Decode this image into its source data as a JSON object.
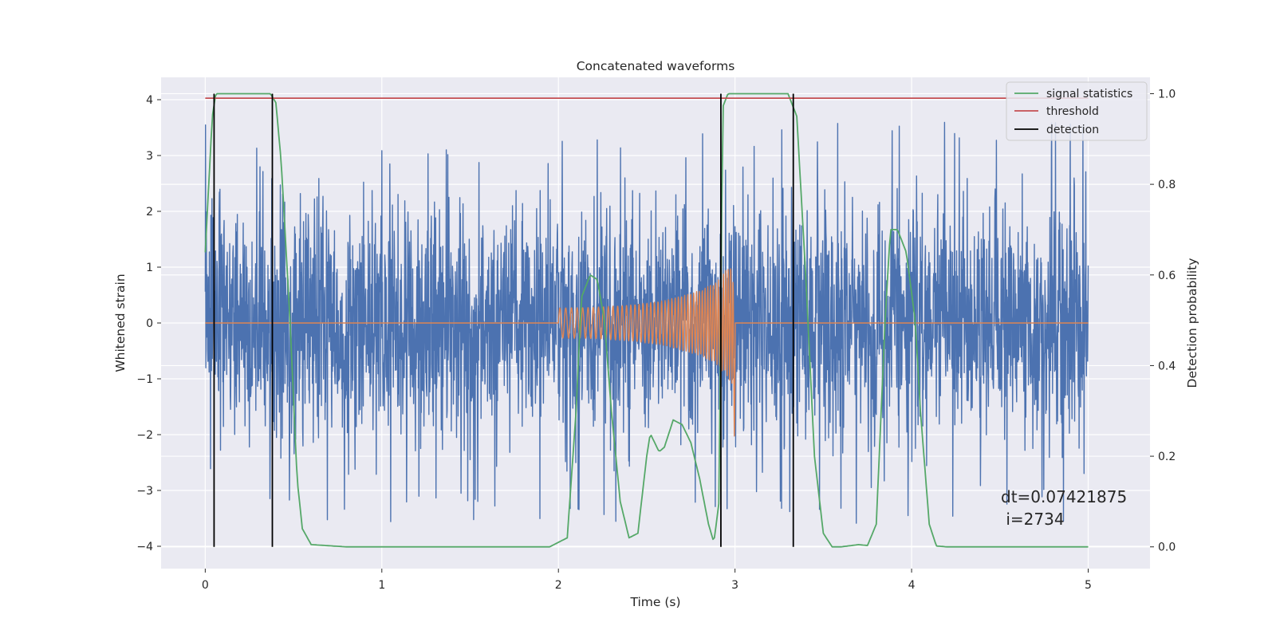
{
  "chart_data": {
    "type": "line",
    "title": "Concatenated waveforms",
    "xlabel": "Time (s)",
    "ylabel": "Whitened strain",
    "y2label": "Detection probability",
    "xlim": [
      -0.25,
      5.35
    ],
    "ylim": [
      -4.4,
      4.4
    ],
    "y2lim": [
      -0.048,
      1.036
    ],
    "xticks": [
      0,
      1,
      2,
      3,
      4,
      5
    ],
    "yticks": [
      -4,
      -3,
      -2,
      -1,
      0,
      1,
      2,
      3,
      4
    ],
    "y2ticks": [
      0.0,
      0.2,
      0.4,
      0.6,
      0.8,
      1.0
    ],
    "xtick_labels": [
      "0",
      "1",
      "2",
      "3",
      "4",
      "5"
    ],
    "ytick_labels": [
      "−4",
      "−3",
      "−2",
      "−1",
      "0",
      "1",
      "2",
      "3",
      "4"
    ],
    "y2tick_labels": [
      "0.0",
      "0.2",
      "0.4",
      "0.6",
      "0.8",
      "1.0"
    ],
    "grid": true,
    "legend_position": "top-right",
    "legend": [
      {
        "label": "signal statistics",
        "color": "#55a868"
      },
      {
        "label": "threshold",
        "color": "#c44e52"
      },
      {
        "label": "detection",
        "color": "#000000"
      }
    ],
    "series": [
      {
        "name": "",
        "axis": "left",
        "color": "#4c72b0",
        "kind": "noise",
        "x_range": [
          0,
          5
        ],
        "typical_range": [
          -2.6,
          2.8
        ]
      },
      {
        "name": "",
        "axis": "left",
        "color": "#dd8452",
        "kind": "chirp",
        "x": [
          0,
          2.0,
          2.0,
          2.2,
          2.4,
          2.6,
          2.8,
          2.9,
          2.95,
          3.0,
          3.0,
          5.0
        ],
        "envelope": [
          0,
          0,
          0.27,
          0.28,
          0.32,
          0.4,
          0.58,
          0.75,
          0.95,
          1.15,
          0,
          0
        ]
      },
      {
        "name": "signal statistics",
        "axis": "right",
        "color": "#55a868",
        "x": [
          0,
          0.02,
          0.04,
          0.06,
          0.1,
          0.3,
          0.37,
          0.4,
          0.43,
          0.48,
          0.52,
          0.55,
          0.6,
          0.8,
          1.0,
          1.5,
          1.95,
          2.05,
          2.1,
          2.13,
          2.18,
          2.22,
          2.26,
          2.3,
          2.35,
          2.4,
          2.45,
          2.5,
          2.52,
          2.57,
          2.6,
          2.65,
          2.7,
          2.75,
          2.8,
          2.85,
          2.88,
          2.91,
          2.93,
          2.96,
          3.05,
          3.3,
          3.35,
          3.4,
          3.45,
          3.5,
          3.55,
          3.6,
          3.7,
          3.75,
          3.8,
          3.85,
          3.88,
          3.92,
          3.97,
          4.02,
          4.05,
          4.08,
          4.1,
          4.14,
          4.2,
          4.5,
          5.0
        ],
        "y": [
          0.65,
          0.8,
          0.95,
          1.0,
          1.0,
          1.0,
          1.0,
          0.98,
          0.85,
          0.5,
          0.15,
          0.04,
          0.005,
          0.0,
          0.0,
          0.0,
          0.0,
          0.02,
          0.3,
          0.55,
          0.6,
          0.59,
          0.5,
          0.3,
          0.1,
          0.02,
          0.03,
          0.2,
          0.25,
          0.21,
          0.22,
          0.28,
          0.27,
          0.23,
          0.15,
          0.05,
          0.01,
          0.1,
          0.97,
          1.0,
          1.0,
          1.0,
          0.95,
          0.6,
          0.2,
          0.03,
          0.0,
          0.0,
          0.005,
          0.003,
          0.05,
          0.5,
          0.7,
          0.7,
          0.65,
          0.5,
          0.3,
          0.15,
          0.05,
          0.002,
          0.0,
          0.0,
          0.0
        ]
      },
      {
        "name": "threshold",
        "axis": "right",
        "color": "#c44e52",
        "x": [
          0,
          5
        ],
        "y": [
          0.99,
          0.99
        ]
      },
      {
        "name": "detection",
        "axis": "right",
        "color": "#000000",
        "kind": "vlines",
        "x": [
          0.05,
          0.38,
          2.92,
          3.33
        ],
        "y_range": [
          0.0,
          1.0
        ]
      }
    ],
    "annotations": [
      "dt=0.07421875",
      " i=2734"
    ]
  }
}
